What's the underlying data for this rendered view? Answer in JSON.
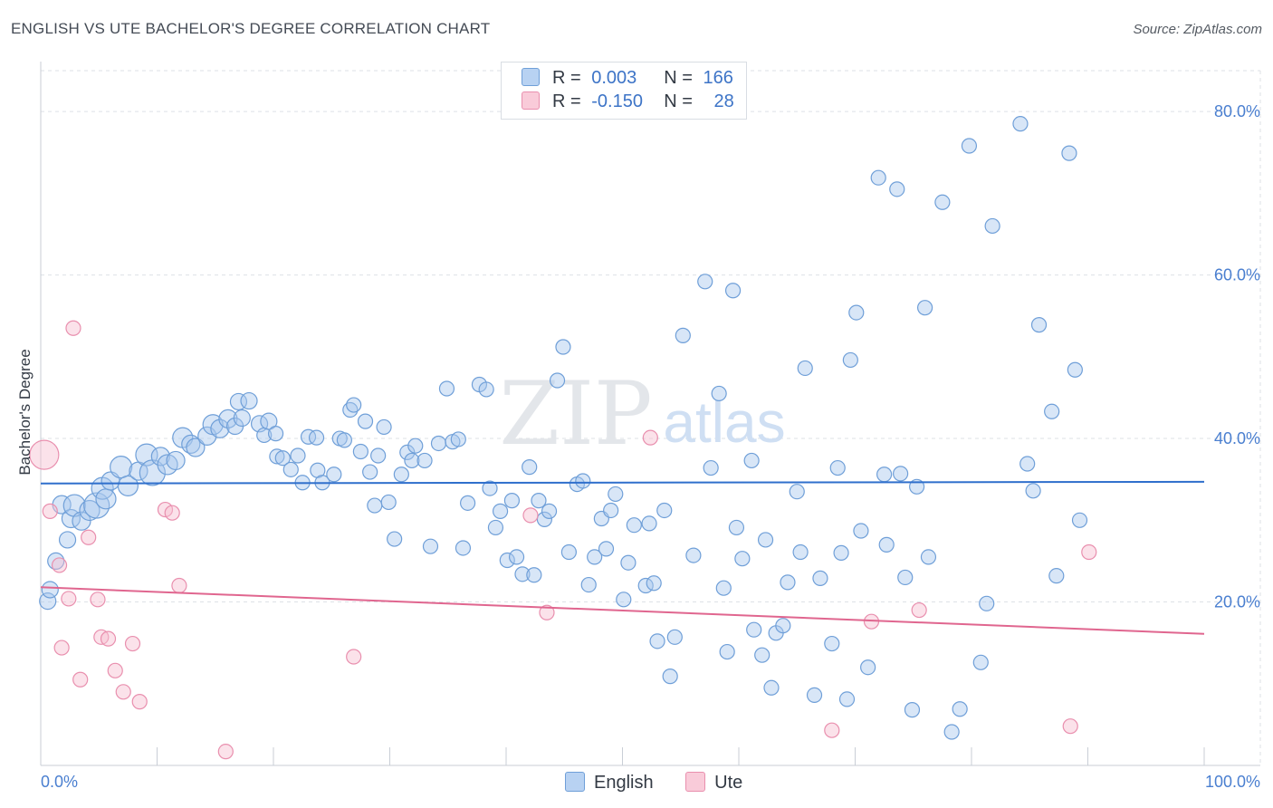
{
  "header": {
    "title": "ENGLISH VS UTE BACHELOR'S DEGREE CORRELATION CHART",
    "source": "Source: ZipAtlas.com"
  },
  "watermark": {
    "part1": "ZIP",
    "part2": "atlas"
  },
  "legend": {
    "english": {
      "r_label": "R =",
      "r_value": "0.003",
      "n_label": "N =",
      "n_value": "166"
    },
    "ute": {
      "r_label": "R =",
      "r_value": "-0.150",
      "n_label": "N =",
      "n_value": "28"
    }
  },
  "bottom_legend": {
    "english": "English",
    "ute": "Ute"
  },
  "colors": {
    "english_fill": "#a9c7ee",
    "english_stroke": "#6f9fd8",
    "english_line": "#2f6fcc",
    "ute_fill": "#f7bfd0",
    "ute_stroke": "#e98fae",
    "ute_line": "#e0668f",
    "grid": "#dde1e6",
    "axis_text": "#4a7fd0"
  },
  "chart_data": {
    "type": "scatter",
    "title": "ENGLISH VS UTE BACHELOR'S DEGREE CORRELATION CHART",
    "xlabel": "",
    "ylabel": "Bachelor's Degree",
    "xlim": [
      0,
      100
    ],
    "ylim": [
      0,
      85
    ],
    "x_tick_labels": [
      "0.0%",
      "100.0%"
    ],
    "y_ticks": [
      20,
      40,
      60,
      80
    ],
    "y_tick_labels": [
      "20.0%",
      "40.0%",
      "60.0%",
      "80.0%"
    ],
    "grid": true,
    "series": [
      {
        "name": "English",
        "trend": {
          "x": [
            0,
            100
          ],
          "y": [
            34.5,
            34.7
          ]
        },
        "points": [
          [
            0.6,
            20.1,
            9
          ],
          [
            0.8,
            21.5,
            9
          ],
          [
            1.3,
            25,
            9
          ],
          [
            1.8,
            31.9,
            10
          ],
          [
            2.3,
            27.6,
            9
          ],
          [
            2.6,
            30.2,
            10
          ],
          [
            2.9,
            31.8,
            12
          ],
          [
            3.5,
            29.9,
            10
          ],
          [
            4.2,
            31.2,
            11
          ],
          [
            4.8,
            31.8,
            14
          ],
          [
            5.3,
            33.9,
            12
          ],
          [
            5.6,
            32.6,
            11
          ],
          [
            6.0,
            34.8,
            10
          ],
          [
            6.9,
            36.5,
            12
          ],
          [
            7.5,
            34.2,
            11
          ],
          [
            8.4,
            36,
            10
          ],
          [
            9.1,
            38,
            12
          ],
          [
            9.6,
            35.8,
            14
          ],
          [
            10.3,
            37.8,
            10
          ],
          [
            10.9,
            36.8,
            11
          ],
          [
            11.6,
            37.3,
            10
          ],
          [
            12.2,
            40.1,
            11
          ],
          [
            12.9,
            39.3,
            10
          ],
          [
            13.3,
            38.9,
            10
          ],
          [
            14.3,
            40.3,
            10
          ],
          [
            14.8,
            41.7,
            11
          ],
          [
            15.4,
            41.2,
            10
          ],
          [
            16.1,
            42.4,
            10
          ],
          [
            16.7,
            41.5,
            9
          ],
          [
            17.3,
            42.5,
            9
          ],
          [
            17.0,
            44.5,
            9
          ],
          [
            17.9,
            44.6,
            9
          ],
          [
            18.8,
            41.8,
            9
          ],
          [
            19.2,
            40.4,
            8
          ],
          [
            19.6,
            42.1,
            9
          ],
          [
            20.2,
            40.6,
            8
          ],
          [
            20.3,
            37.8,
            8
          ],
          [
            20.8,
            37.6,
            8
          ],
          [
            21.5,
            36.2,
            8
          ],
          [
            22.1,
            37.9,
            8
          ],
          [
            22.5,
            34.6,
            8
          ],
          [
            23.0,
            40.2,
            8
          ],
          [
            23.7,
            40.1,
            8
          ],
          [
            23.8,
            36.1,
            8
          ],
          [
            24.2,
            34.6,
            8
          ],
          [
            25.2,
            35.6,
            8
          ],
          [
            25.7,
            40,
            8
          ],
          [
            26.1,
            39.8,
            8
          ],
          [
            26.6,
            43.5,
            8
          ],
          [
            26.9,
            44.1,
            8
          ],
          [
            27.5,
            38.4,
            8
          ],
          [
            27.9,
            42.1,
            8
          ],
          [
            28.3,
            35.9,
            8
          ],
          [
            28.7,
            31.8,
            8
          ],
          [
            29.0,
            37.9,
            8
          ],
          [
            29.5,
            41.4,
            8
          ],
          [
            29.9,
            32.2,
            8
          ],
          [
            30.4,
            27.7,
            8
          ],
          [
            31.0,
            35.6,
            8
          ],
          [
            31.5,
            38.3,
            8
          ],
          [
            31.9,
            37.3,
            8
          ],
          [
            32.2,
            39.1,
            8
          ],
          [
            33.0,
            37.3,
            8
          ],
          [
            33.5,
            26.8,
            8
          ],
          [
            34.2,
            39.4,
            8
          ],
          [
            34.9,
            46.1,
            8
          ],
          [
            35.4,
            39.6,
            8
          ],
          [
            35.9,
            39.9,
            8
          ],
          [
            36.3,
            26.6,
            8
          ],
          [
            36.7,
            32.1,
            8
          ],
          [
            37.7,
            46.6,
            8
          ],
          [
            38.3,
            46,
            8
          ],
          [
            38.6,
            33.9,
            8
          ],
          [
            39.1,
            29.1,
            8
          ],
          [
            39.5,
            31.1,
            8
          ],
          [
            40.1,
            25.1,
            8
          ],
          [
            40.5,
            32.4,
            8
          ],
          [
            40.9,
            25.5,
            8
          ],
          [
            41.4,
            23.4,
            8
          ],
          [
            42.0,
            36.5,
            8
          ],
          [
            42.4,
            23.3,
            8
          ],
          [
            42.8,
            32.4,
            8
          ],
          [
            43.3,
            30.1,
            8
          ],
          [
            43.7,
            31.1,
            8
          ],
          [
            44.4,
            47.1,
            8
          ],
          [
            44.9,
            51.2,
            8
          ],
          [
            45.4,
            26.1,
            8
          ],
          [
            46.1,
            34.4,
            8
          ],
          [
            46.6,
            34.8,
            8
          ],
          [
            47.1,
            22.1,
            8
          ],
          [
            47.6,
            25.5,
            8
          ],
          [
            48.2,
            30.2,
            8
          ],
          [
            48.6,
            26.5,
            8
          ],
          [
            49.0,
            31.2,
            8
          ],
          [
            49.4,
            33.2,
            8
          ],
          [
            50.1,
            20.3,
            8
          ],
          [
            50.5,
            24.8,
            8
          ],
          [
            51.0,
            29.4,
            8
          ],
          [
            52.0,
            22,
            8
          ],
          [
            52.3,
            29.6,
            8
          ],
          [
            52.7,
            22.3,
            8
          ],
          [
            53.0,
            15.2,
            8
          ],
          [
            53.6,
            31.2,
            8
          ],
          [
            54.1,
            10.9,
            8
          ],
          [
            54.5,
            15.7,
            8
          ],
          [
            55.2,
            52.6,
            8
          ],
          [
            56.1,
            25.7,
            8
          ],
          [
            57.1,
            59.2,
            8
          ],
          [
            57.6,
            36.4,
            8
          ],
          [
            58.3,
            45.5,
            8
          ],
          [
            58.7,
            21.7,
            8
          ],
          [
            59.0,
            13.9,
            8
          ],
          [
            59.5,
            58.1,
            8
          ],
          [
            59.8,
            29.1,
            8
          ],
          [
            60.3,
            25.3,
            8
          ],
          [
            61.1,
            37.3,
            8
          ],
          [
            61.3,
            16.6,
            8
          ],
          [
            62.0,
            13.5,
            8
          ],
          [
            62.3,
            27.6,
            8
          ],
          [
            62.8,
            9.5,
            8
          ],
          [
            63.2,
            16.2,
            8
          ],
          [
            63.8,
            17.1,
            8
          ],
          [
            64.2,
            22.4,
            8
          ],
          [
            65.0,
            33.5,
            8
          ],
          [
            65.3,
            26.1,
            8
          ],
          [
            65.7,
            48.6,
            8
          ],
          [
            66.5,
            8.6,
            8
          ],
          [
            67.0,
            22.9,
            8
          ],
          [
            68.0,
            14.9,
            8
          ],
          [
            68.5,
            36.4,
            8
          ],
          [
            68.8,
            26,
            8
          ],
          [
            69.3,
            8.1,
            8
          ],
          [
            69.6,
            49.6,
            8
          ],
          [
            70.1,
            55.4,
            8
          ],
          [
            70.5,
            28.7,
            8
          ],
          [
            71.1,
            12,
            8
          ],
          [
            72.0,
            71.9,
            8
          ],
          [
            72.5,
            35.6,
            8
          ],
          [
            72.7,
            27,
            8
          ],
          [
            73.6,
            70.5,
            8
          ],
          [
            73.9,
            35.7,
            8
          ],
          [
            74.3,
            23,
            8
          ],
          [
            74.9,
            6.8,
            8
          ],
          [
            75.3,
            34.1,
            8
          ],
          [
            76.0,
            56,
            8
          ],
          [
            76.3,
            25.5,
            8
          ],
          [
            77.5,
            68.9,
            8
          ],
          [
            78.3,
            4.1,
            8
          ],
          [
            79.0,
            6.9,
            8
          ],
          [
            79.8,
            75.8,
            8
          ],
          [
            80.8,
            12.6,
            8
          ],
          [
            81.3,
            19.8,
            8
          ],
          [
            81.8,
            66,
            8
          ],
          [
            84.2,
            78.5,
            8
          ],
          [
            84.8,
            36.9,
            8
          ],
          [
            85.3,
            33.6,
            8
          ],
          [
            85.8,
            53.9,
            8
          ],
          [
            86.9,
            43.3,
            8
          ],
          [
            87.3,
            23.2,
            8
          ],
          [
            88.4,
            74.9,
            8
          ],
          [
            88.9,
            48.4,
            8
          ],
          [
            89.3,
            30,
            8
          ]
        ]
      },
      {
        "name": "Ute",
        "trend": {
          "x": [
            0,
            100
          ],
          "y": [
            21.8,
            16.1
          ]
        },
        "points": [
          [
            0.3,
            38,
            16
          ],
          [
            0.8,
            31.1,
            8
          ],
          [
            1.6,
            24.5,
            8
          ],
          [
            1.8,
            14.4,
            8
          ],
          [
            2.4,
            20.4,
            8
          ],
          [
            2.8,
            53.5,
            8
          ],
          [
            3.4,
            10.5,
            8
          ],
          [
            4.1,
            27.9,
            8
          ],
          [
            4.9,
            20.3,
            8
          ],
          [
            5.2,
            15.7,
            8
          ],
          [
            5.8,
            15.5,
            8
          ],
          [
            6.4,
            11.6,
            8
          ],
          [
            7.1,
            9,
            8
          ],
          [
            7.9,
            14.9,
            8
          ],
          [
            8.5,
            7.8,
            8
          ],
          [
            10.7,
            31.3,
            8
          ],
          [
            11.3,
            30.9,
            8
          ],
          [
            11.9,
            22,
            8
          ],
          [
            15.9,
            1.7,
            8
          ],
          [
            26.9,
            13.3,
            8
          ],
          [
            42.1,
            30.6,
            8
          ],
          [
            43.5,
            18.7,
            8
          ],
          [
            52.4,
            40.1,
            8
          ],
          [
            68.0,
            4.3,
            8
          ],
          [
            71.4,
            17.6,
            8
          ],
          [
            75.5,
            19,
            8
          ],
          [
            88.5,
            4.8,
            8
          ],
          [
            90.1,
            26.1,
            8
          ]
        ]
      }
    ]
  }
}
